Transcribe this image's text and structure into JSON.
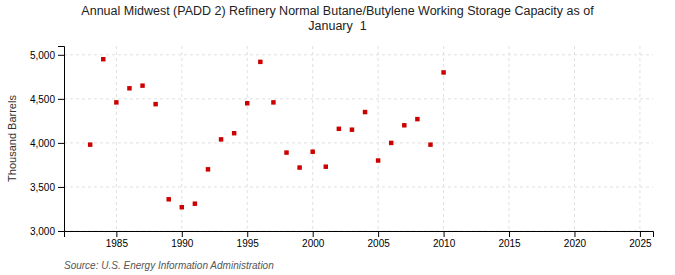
{
  "chart_data": {
    "type": "scatter",
    "title": "Annual Midwest (PADD 2) Refinery Normal Butane/Butylene Working Storage Capacity as of\nJanuary  1",
    "y_label": "Thousand Barrels",
    "source": "Source: U.S. Energy Information Administration",
    "color": "#cc0000",
    "marker": "square",
    "x": [
      1983,
      1984,
      1985,
      1986,
      1987,
      1988,
      1989,
      1990,
      1991,
      1992,
      1993,
      1994,
      1995,
      1996,
      1997,
      1998,
      1999,
      2000,
      2001,
      2002,
      2003,
      2004,
      2005,
      2006,
      2007,
      2008,
      2009,
      2010
    ],
    "values": [
      3980,
      4950,
      4460,
      4620,
      4650,
      4440,
      3360,
      3270,
      3310,
      3700,
      4040,
      4110,
      4450,
      4920,
      4460,
      3890,
      3720,
      3900,
      3730,
      4160,
      4150,
      4350,
      3800,
      4000,
      4200,
      4270,
      3980,
      4800
    ],
    "xlim": [
      1981,
      2026
    ],
    "ylim": [
      3000,
      5100
    ],
    "xticks": [
      1985,
      1990,
      1995,
      2000,
      2005,
      2010,
      2015,
      2020,
      2025
    ],
    "yticks": [
      {
        "value": 3000,
        "label": "3,000"
      },
      {
        "value": 3500,
        "label": "3,500"
      },
      {
        "value": 4000,
        "label": "4,000"
      },
      {
        "value": 4500,
        "label": "4,500"
      },
      {
        "value": 5000,
        "label": "5,000"
      }
    ],
    "grid": true
  }
}
